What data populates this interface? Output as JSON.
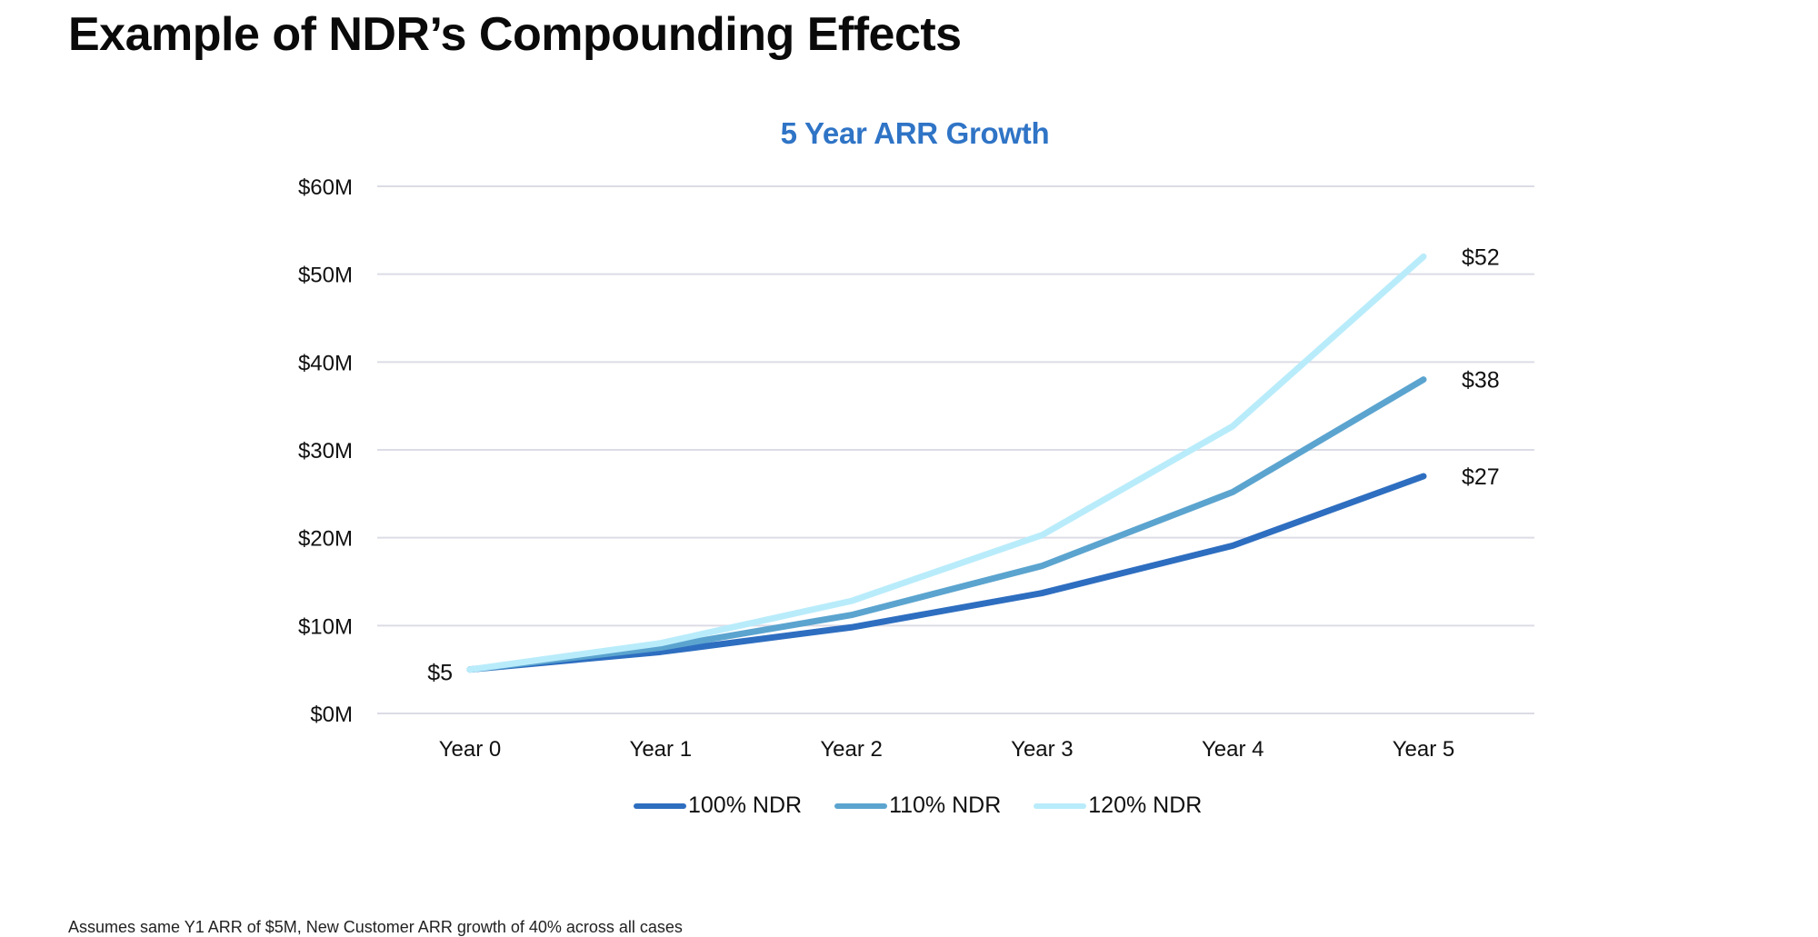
{
  "page": {
    "title": "Example of NDR’s Compounding Effects",
    "footnote": "Assumes same Y1 ARR of $5M, New Customer ARR growth of 40% across all cases"
  },
  "chart_data": {
    "type": "line",
    "title": "5 Year ARR Growth",
    "xlabel": "",
    "ylabel": "",
    "categories": [
      "Year 0",
      "Year 1",
      "Year 2",
      "Year 3",
      "Year 4",
      "Year 5"
    ],
    "ylim": [
      0,
      60
    ],
    "yticks": [
      0,
      10,
      20,
      30,
      40,
      50,
      60
    ],
    "ytick_labels": [
      "$0M",
      "$10M",
      "$20M",
      "$30M",
      "$40M",
      "$50M",
      "$60M"
    ],
    "grid": true,
    "legend_position": "bottom-center",
    "series": [
      {
        "name": "100% NDR",
        "color": "#2E6EC0",
        "values": [
          5,
          7.0,
          9.8,
          13.7,
          19.1,
          27
        ]
      },
      {
        "name": "110% NDR",
        "color": "#5BA4CF",
        "values": [
          5,
          7.5,
          11.2,
          16.8,
          25.2,
          38
        ]
      },
      {
        "name": "120% NDR",
        "color": "#B9ECFB",
        "values": [
          5,
          8.0,
          12.8,
          20.3,
          32.7,
          52
        ]
      }
    ],
    "annotations": [
      {
        "category": "Year 0",
        "value": 5,
        "text": "$5"
      },
      {
        "category": "Year 5",
        "series": "120% NDR",
        "value": 52,
        "text": "$52"
      },
      {
        "category": "Year 5",
        "series": "110% NDR",
        "value": 38,
        "text": "$38"
      },
      {
        "category": "Year 5",
        "series": "100% NDR",
        "value": 27,
        "text": "$27"
      }
    ]
  }
}
